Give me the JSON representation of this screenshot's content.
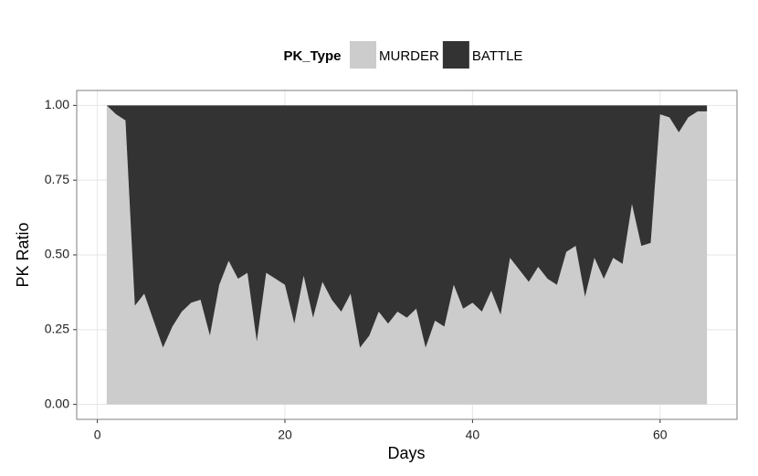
{
  "chart_data": {
    "type": "area",
    "stacked": true,
    "legend_title": "PK_Type",
    "legend_position": "top",
    "xlabel": "Days",
    "ylabel": "PK Ratio",
    "x": [
      1,
      2,
      3,
      4,
      5,
      6,
      7,
      8,
      9,
      10,
      11,
      12,
      13,
      14,
      15,
      16,
      17,
      18,
      19,
      20,
      21,
      22,
      23,
      24,
      25,
      26,
      27,
      28,
      29,
      30,
      31,
      32,
      33,
      34,
      35,
      36,
      37,
      38,
      39,
      40,
      41,
      42,
      43,
      44,
      45,
      46,
      47,
      48,
      49,
      50,
      51,
      52,
      53,
      54,
      55,
      56,
      57,
      58,
      59,
      60,
      61,
      62,
      63,
      64,
      65
    ],
    "series": [
      {
        "name": "MURDER",
        "color": "#cccccc",
        "values": [
          1.0,
          0.97,
          0.95,
          0.33,
          0.37,
          0.28,
          0.19,
          0.26,
          0.31,
          0.34,
          0.35,
          0.23,
          0.4,
          0.48,
          0.42,
          0.44,
          0.21,
          0.44,
          0.42,
          0.4,
          0.27,
          0.43,
          0.29,
          0.41,
          0.35,
          0.31,
          0.37,
          0.19,
          0.23,
          0.31,
          0.27,
          0.31,
          0.29,
          0.32,
          0.19,
          0.28,
          0.26,
          0.4,
          0.32,
          0.34,
          0.31,
          0.38,
          0.3,
          0.49,
          0.45,
          0.41,
          0.46,
          0.42,
          0.4,
          0.51,
          0.53,
          0.36,
          0.49,
          0.42,
          0.49,
          0.47,
          0.67,
          0.53,
          0.54,
          0.97,
          0.96,
          0.91,
          0.96,
          0.98,
          0.98
        ]
      },
      {
        "name": "BATTLE",
        "color": "#333333",
        "values": [
          0,
          0.03,
          0.05,
          0.67,
          0.63,
          0.72,
          0.81,
          0.74,
          0.69,
          0.66,
          0.65,
          0.77,
          0.6,
          0.52,
          0.58,
          0.56,
          0.79,
          0.56,
          0.58,
          0.6,
          0.73,
          0.57,
          0.71,
          0.59,
          0.65,
          0.69,
          0.63,
          0.81,
          0.77,
          0.69,
          0.73,
          0.69,
          0.71,
          0.68,
          0.81,
          0.72,
          0.74,
          0.6,
          0.68,
          0.66,
          0.69,
          0.62,
          0.7,
          0.51,
          0.55,
          0.59,
          0.54,
          0.58,
          0.6,
          0.49,
          0.47,
          0.64,
          0.51,
          0.58,
          0.51,
          0.53,
          0.33,
          0.47,
          0.46,
          0.03,
          0.04,
          0.09,
          0.04,
          0.02,
          0.02
        ]
      }
    ],
    "xlim": [
      -2.2,
      68.2
    ],
    "xticks": [
      0,
      20,
      40,
      60
    ],
    "ylim": [
      -0.05,
      1.05
    ],
    "yticks": [
      {
        "value": 0,
        "label": "0.00"
      },
      {
        "value": 0.25,
        "label": "0.25"
      },
      {
        "value": 0.5,
        "label": "0.50"
      },
      {
        "value": 0.75,
        "label": "0.75"
      },
      {
        "value": 1,
        "label": "1.00"
      }
    ],
    "grid": true
  }
}
